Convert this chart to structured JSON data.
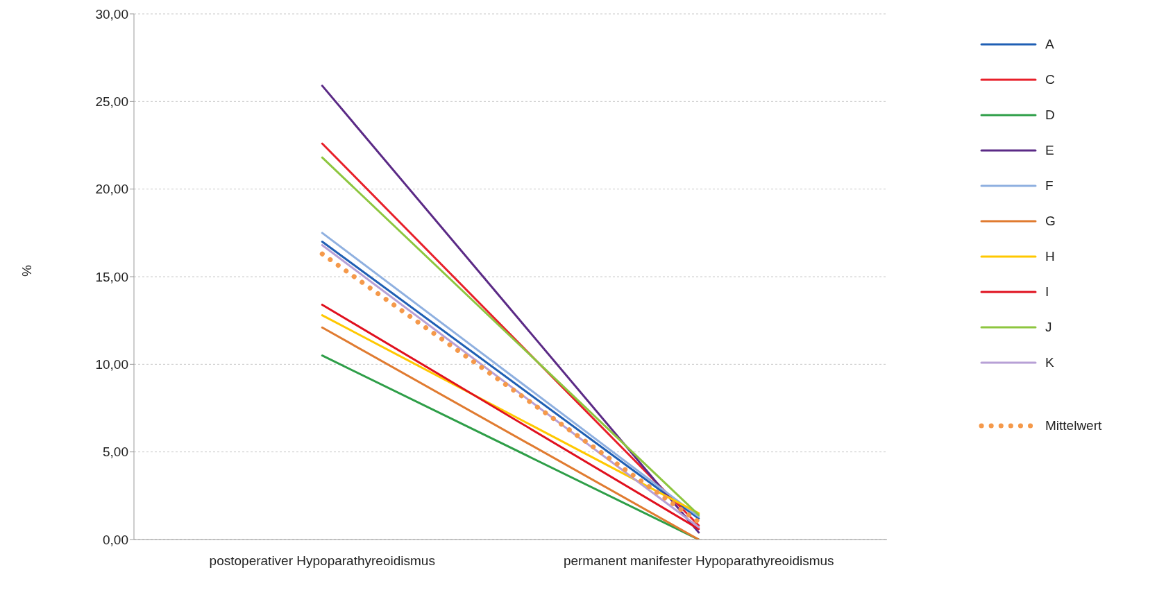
{
  "chart_data": {
    "type": "line",
    "ylabel": "%",
    "categories": [
      "postoperativer Hypoparathyreoidismus",
      "permanent manifester Hypoparathyreoidismus"
    ],
    "ylim": [
      0,
      30
    ],
    "yticks": [
      {
        "value": 0,
        "label": "0,00"
      },
      {
        "value": 5,
        "label": "5,00"
      },
      {
        "value": 10,
        "label": "10,00"
      },
      {
        "value": 15,
        "label": "15,00"
      },
      {
        "value": 20,
        "label": "20,00"
      },
      {
        "value": 25,
        "label": "25,00"
      },
      {
        "value": 30,
        "label": "30,00"
      }
    ],
    "grid": "y",
    "legend": "right",
    "line_style": "solid",
    "marker": "none",
    "series": [
      {
        "name": "A",
        "color": "#1f5fb4",
        "values": [
          17.0,
          1.2
        ]
      },
      {
        "name": "C",
        "color": "#e8202a",
        "values": [
          22.6,
          0.8
        ]
      },
      {
        "name": "D",
        "color": "#2e9e48",
        "values": [
          10.5,
          0.0
        ]
      },
      {
        "name": "E",
        "color": "#5b2a86",
        "values": [
          25.9,
          0.4
        ]
      },
      {
        "name": "F",
        "color": "#8fb0e0",
        "values": [
          17.5,
          1.3
        ]
      },
      {
        "name": "G",
        "color": "#e07b30",
        "values": [
          12.1,
          0.0
        ]
      },
      {
        "name": "H",
        "color": "#ffc800",
        "values": [
          12.8,
          1.5
        ]
      },
      {
        "name": "I",
        "color": "#e0101e",
        "values": [
          13.4,
          0.6
        ]
      },
      {
        "name": "J",
        "color": "#8dc63f",
        "values": [
          21.8,
          1.4
        ]
      },
      {
        "name": "K",
        "color": "#b7a0d6",
        "values": [
          16.8,
          0.7
        ]
      },
      {
        "name": "Mittelwert",
        "color": "#f5994a",
        "line_style": "dotted",
        "values": [
          16.3,
          1.0
        ]
      }
    ]
  }
}
